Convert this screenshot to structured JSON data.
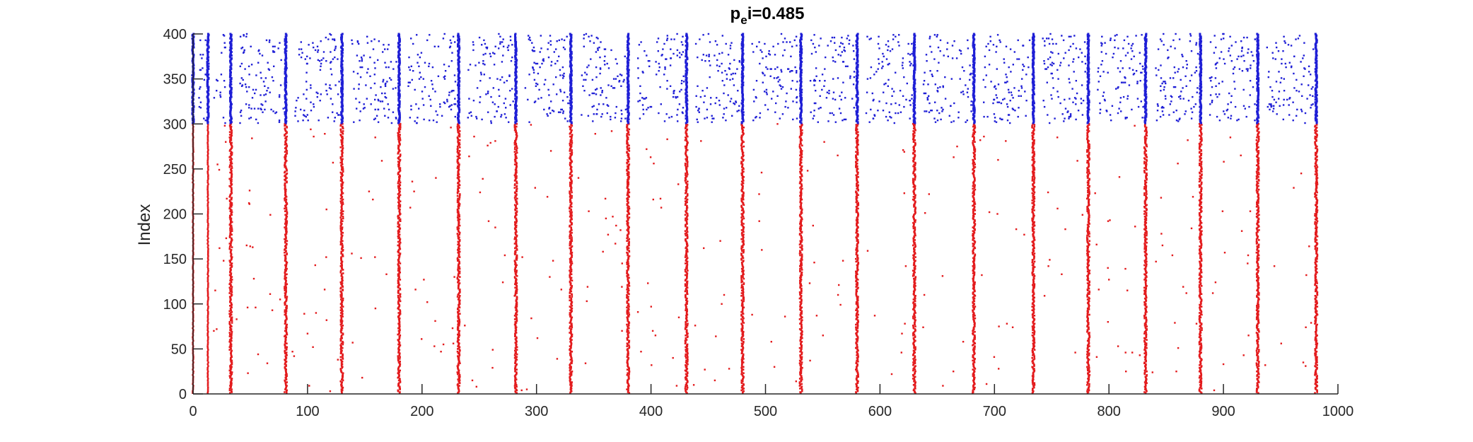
{
  "chart_data": {
    "type": "scatter",
    "title": {
      "base": "p",
      "subscript": "e",
      "rest": "i=0.485"
    },
    "xlabel": "",
    "ylabel": "Index",
    "xlim": [
      0,
      1000
    ],
    "ylim": [
      0,
      400
    ],
    "xticks": [
      0,
      100,
      200,
      300,
      400,
      500,
      600,
      700,
      800,
      900,
      1000
    ],
    "yticks": [
      0,
      50,
      100,
      150,
      200,
      250,
      300,
      350,
      400
    ],
    "xtick_labels": [
      "0",
      "100",
      "200",
      "300",
      "400",
      "500",
      "600",
      "700",
      "800",
      "900",
      "1000"
    ],
    "ytick_labels": [
      "0",
      "50",
      "100",
      "150",
      "200",
      "250",
      "300",
      "350",
      "400"
    ],
    "grid": false,
    "legend": "none",
    "series": [
      {
        "color": "#e31a1c",
        "index_range": [
          1,
          300
        ],
        "burst_times": [
          0,
          13,
          33,
          81,
          130,
          180,
          232,
          282,
          330,
          380,
          431,
          480,
          531,
          580,
          630,
          682,
          734,
          782,
          832,
          880,
          930,
          981
        ],
        "note_pattern": "near-synchronous population bursts (vertical lines) with sparse background spikes between bursts"
      },
      {
        "color": "#1f1fd6",
        "index_range": [
          301,
          400
        ],
        "burst_times": [
          0,
          13,
          33,
          81,
          130,
          180,
          232,
          282,
          330,
          380,
          431,
          480,
          531,
          580,
          630,
          682,
          734,
          782,
          832,
          880,
          930,
          981
        ],
        "note_pattern": "dense irregular spiking following each burst, with vertical lines at burst times"
      }
    ]
  }
}
